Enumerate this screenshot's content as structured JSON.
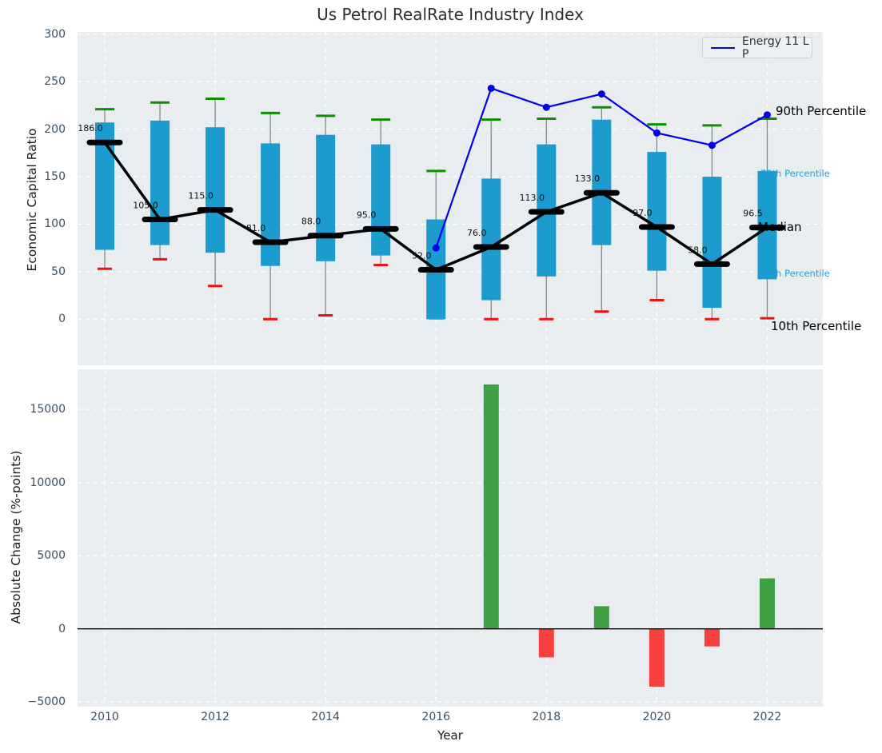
{
  "title": "Us Petrol RealRate Industry Index",
  "legend": {
    "label": "Energy 11 L P"
  },
  "colors": {
    "box_fill": "#1c9bce",
    "cap_high": "#0a9000",
    "cap_low": "#ee1111",
    "whisker": "#808080",
    "median": "#000000",
    "median_line": "#000000",
    "energy_line": "#0000ee",
    "bar_positive": "#3f9f44",
    "bar_negative": "#f94040",
    "panel_bg": "#e9edef",
    "grid": "#ffffff",
    "tick_label": "#3b5166",
    "annotation": "#111111",
    "cyan_label": "#1da2d8"
  },
  "chart_data": [
    {
      "type": "boxplot+line",
      "title": "Us Petrol RealRate Industry Index",
      "ylabel": "Economic Capital Ratio",
      "years": [
        2010,
        2011,
        2012,
        2013,
        2014,
        2015,
        2016,
        2017,
        2018,
        2019,
        2020,
        2021,
        2022
      ],
      "median": [
        186,
        105,
        115,
        81,
        88,
        95,
        52,
        76,
        113,
        133,
        97,
        58,
        96.5
      ],
      "median_labels": [
        "186.0",
        "105.0",
        "115.0",
        "81.0",
        "88.0",
        "95.0",
        "52.0",
        "76.0",
        "113.0",
        "133.0",
        "97.0",
        "58.0",
        "96.5"
      ],
      "q1": [
        73,
        78,
        70,
        56,
        61,
        67,
        0,
        20,
        45,
        78,
        51,
        12,
        42
      ],
      "q3": [
        207,
        209,
        202,
        185,
        194,
        184,
        105,
        148,
        184,
        210,
        176,
        150,
        156
      ],
      "p10": [
        53,
        63,
        35,
        0,
        4,
        57,
        1,
        0,
        0,
        8,
        20,
        0,
        1
      ],
      "p90": [
        221,
        228,
        232,
        217,
        214,
        210,
        156,
        210,
        211,
        223,
        205,
        204,
        211
      ],
      "series": [
        {
          "name": "Energy 11 L P",
          "x": [
            2016,
            2017,
            2018,
            2019,
            2020,
            2021,
            2022
          ],
          "values": [
            75,
            243,
            223,
            237,
            196,
            183,
            215
          ]
        }
      ],
      "yticks": [
        0,
        50,
        100,
        150,
        200,
        250,
        300
      ],
      "ylim": [
        -48,
        302
      ],
      "xlim": [
        2009.5,
        2023
      ],
      "grid": true,
      "legend_position": "upper right",
      "right_labels": [
        {
          "text": "90th Percentile",
          "value": 219,
          "style": "big"
        },
        {
          "text": "75th Percentile",
          "value": 153,
          "style": "small"
        },
        {
          "text": "Median",
          "value": 97,
          "style": "big"
        },
        {
          "text": "25th Percentile",
          "value": 48,
          "style": "small"
        },
        {
          "text": "10th Percentile",
          "value": -7,
          "style": "big"
        }
      ]
    },
    {
      "type": "bar",
      "ylabel": "Absolute Change (%-points)",
      "xlabel": "Year",
      "years": [
        2017,
        2018,
        2019,
        2020,
        2021,
        2022
      ],
      "values": [
        16700,
        -1950,
        1550,
        -3950,
        -1200,
        3450
      ],
      "yticks": [
        -5000,
        0,
        5000,
        10000,
        15000
      ],
      "xticks": [
        2010,
        2012,
        2014,
        2016,
        2018,
        2020,
        2022
      ],
      "ylim": [
        -5300,
        17750
      ],
      "xlim": [
        2009.5,
        2023
      ],
      "grid": true,
      "zero_line": true
    }
  ]
}
